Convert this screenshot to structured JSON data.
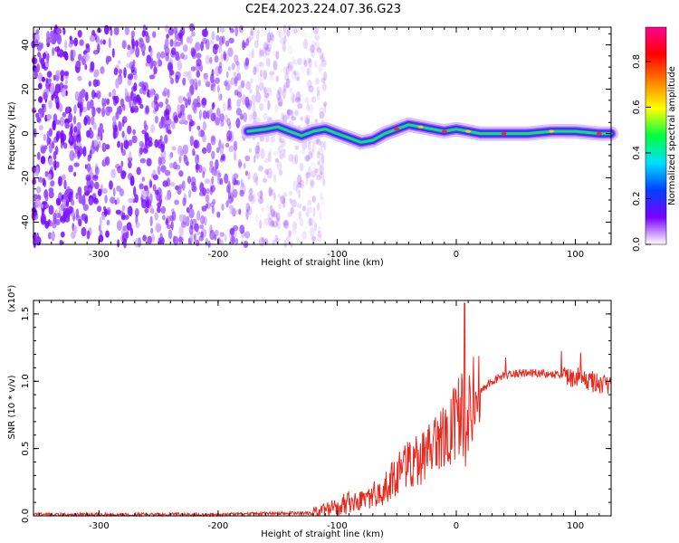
{
  "page_title": "C2E4.2023.224.07.36.G23",
  "chart_data": [
    {
      "type": "heatmap",
      "xlabel": "Height of straight line (km)",
      "ylabel": "Frequency (Hz)",
      "xlim": [
        -355,
        130
      ],
      "ylim": [
        -50,
        48
      ],
      "xticks": [
        -300,
        -200,
        -100,
        0,
        100
      ],
      "yticks": [
        -40,
        -20,
        0,
        20,
        40
      ],
      "colorbar": {
        "label": "Normalized spectral amplitude",
        "range": [
          0,
          0.95
        ],
        "ticks": [
          "0.0",
          "0.2",
          "0.4",
          "0.6",
          "0.8"
        ],
        "colormap": [
          "#ffffff",
          "#7a00ff",
          "#0040ff",
          "#00e0ff",
          "#00ff40",
          "#ffff00",
          "#ff8000",
          "#ff0000",
          "#ff0090"
        ]
      },
      "description_noise_region_end_km": -110,
      "signal_trace": {
        "x": [
          -175,
          -160,
          -150,
          -140,
          -130,
          -120,
          -110,
          -100,
          -90,
          -80,
          -70,
          -60,
          -50,
          -40,
          -30,
          -20,
          -10,
          0,
          10,
          20,
          40,
          60,
          80,
          100,
          120,
          130
        ],
        "y": [
          1,
          2,
          3,
          1,
          -1,
          1,
          2,
          0,
          -2,
          -4,
          -3,
          0,
          2,
          4,
          3,
          2,
          1,
          2,
          1,
          0,
          0,
          0,
          1,
          1,
          0,
          0
        ]
      }
    },
    {
      "type": "line",
      "xlabel": "Height of straight line (km)",
      "ylabel": "SNR (10 * v/v)",
      "scale_label": "(x10⁴)",
      "xlim": [
        -355,
        130
      ],
      "ylim": [
        0,
        1.6
      ],
      "xticks": [
        -300,
        -200,
        -100,
        0,
        100
      ],
      "yticks": [
        "0.0",
        "0.5",
        "1.0",
        "1.5"
      ],
      "series": [
        {
          "color": "#e8281e",
          "x": [
            -355,
            -300,
            -250,
            -200,
            -150,
            -120,
            -110,
            -100,
            -90,
            -80,
            -70,
            -60,
            -50,
            -40,
            -30,
            -20,
            -10,
            0,
            5,
            8,
            10,
            15,
            20,
            30,
            40,
            50,
            60,
            70,
            80,
            90,
            100,
            110,
            120,
            130
          ],
          "values": [
            0.01,
            0.01,
            0.01,
            0.01,
            0.02,
            0.02,
            0.04,
            0.07,
            0.1,
            0.12,
            0.15,
            0.2,
            0.3,
            0.38,
            0.42,
            0.5,
            0.6,
            0.7,
            0.78,
            0.35,
            0.78,
            0.85,
            0.92,
            1.0,
            1.04,
            1.06,
            1.06,
            1.06,
            1.05,
            1.04,
            1.03,
            1.01,
            0.98,
            0.97
          ]
        }
      ]
    }
  ]
}
